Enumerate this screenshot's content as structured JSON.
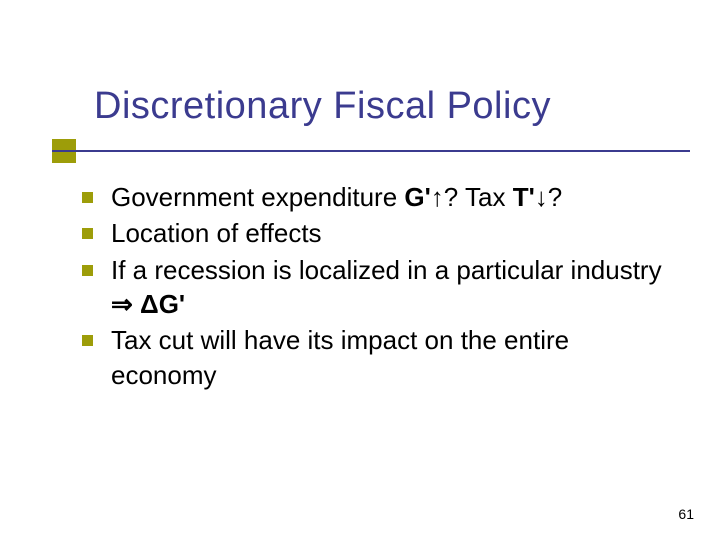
{
  "colors": {
    "title": "#3b3b8f",
    "underline": "#3b3b8f",
    "title_box": "#9d9d09",
    "bullet": "#9d9d09",
    "text": "#000000",
    "background": "#ffffff"
  },
  "typography": {
    "title_fontsize": 38,
    "body_fontsize": 26,
    "pagenum_fontsize": 14,
    "font_family": "Verdana"
  },
  "title": "Discretionary Fiscal Policy",
  "bullets": [
    {
      "pre": "Government expenditure ",
      "bold1": "G'",
      "sym1": "↑",
      "mid": "? Tax ",
      "bold2": "T'",
      "sym2": "↓",
      "post": "?"
    },
    {
      "plain": "Location of effects"
    },
    {
      "pre": "If a recession is localized in a particular industry ",
      "sym1": "⇒",
      "bold1": " ΔG'"
    },
    {
      "plain": "Tax cut will have its impact on the entire economy"
    }
  ],
  "page_number": "61"
}
